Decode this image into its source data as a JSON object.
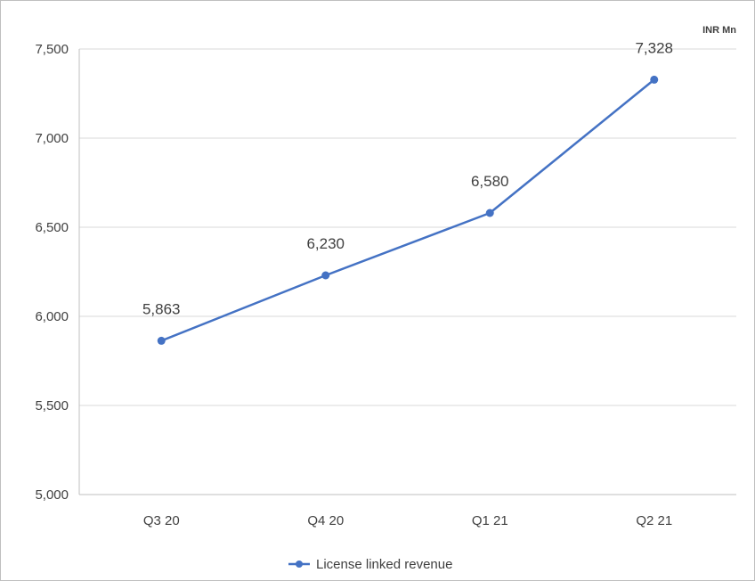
{
  "chart_data": {
    "type": "line",
    "unit_label": "INR Mn",
    "categories": [
      "Q3 20",
      "Q4 20",
      "Q1 21",
      "Q2 21"
    ],
    "series": [
      {
        "name": "License linked revenue",
        "values": [
          5863,
          6230,
          6580,
          7328
        ],
        "labels": [
          "5,863",
          "6,230",
          "6,580",
          "7,328"
        ],
        "color": "#4472c4"
      }
    ],
    "y_ticks": [
      "5,000",
      "5,500",
      "6,000",
      "6,500",
      "7,000",
      "7,500"
    ],
    "ylim": [
      5000,
      7500
    ],
    "y_step": 500,
    "grid": "horizontal",
    "legend_position": "bottom",
    "colors": {
      "gridline": "#d9d9d9",
      "axis": "#bfbfbf",
      "text": "#404040"
    }
  }
}
